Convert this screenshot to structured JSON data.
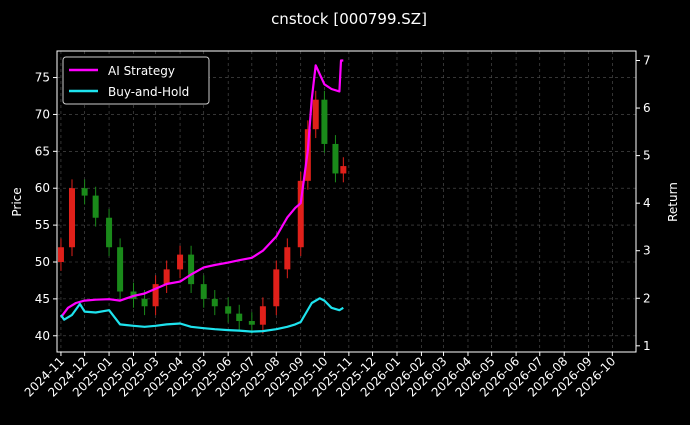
{
  "chart_data": {
    "type": "line",
    "title": "cnstock [000799.SZ]",
    "xlabel": "",
    "ylabel": "Price",
    "y2label": "Return",
    "x_ticks": [
      "2024-11",
      "2024-12",
      "2025-01",
      "2025-02",
      "2025-03",
      "2025-04",
      "2025-05",
      "2025-06",
      "2025-07",
      "2025-08",
      "2025-09",
      "2025-10",
      "2025-11",
      "2025-12",
      "2026-01",
      "2026-02",
      "2026-03",
      "2026-04",
      "2026-05",
      "2026-06",
      "2026-07",
      "2026-08",
      "2026-09",
      "2026-10"
    ],
    "y_ticks": [
      40,
      45,
      50,
      55,
      60,
      65,
      70,
      75
    ],
    "y2_ticks": [
      1,
      2,
      3,
      4,
      5,
      6,
      7
    ],
    "x_range": [
      "2024-10-27",
      "2026-10-31"
    ],
    "y_range": [
      37.8,
      78.6
    ],
    "y2_range": [
      0.87,
      7.2
    ],
    "grid": true,
    "legend_position": "top-left",
    "colors": {
      "background": "#000000",
      "ai_strategy": "#ff00ff",
      "buy_and_hold": "#1ee3ee",
      "candle_up": "#e0201a",
      "candle_down": "#1a8a1a",
      "grid": "#555555",
      "text": "#ffffff"
    },
    "candles": {
      "dates": [
        "2024-11-01",
        "2024-11-15",
        "2024-12-01",
        "2024-12-15",
        "2025-01-01",
        "2025-01-15",
        "2025-02-01",
        "2025-02-15",
        "2025-03-01",
        "2025-03-15",
        "2025-04-01",
        "2025-04-15",
        "2025-05-01",
        "2025-05-15",
        "2025-06-01",
        "2025-06-15",
        "2025-07-01",
        "2025-07-15",
        "2025-08-01",
        "2025-08-15",
        "2025-09-01",
        "2025-09-10",
        "2025-09-20",
        "2025-10-01",
        "2025-10-15",
        "2025-10-25"
      ],
      "close": [
        52,
        60,
        59,
        56,
        52,
        46,
        45,
        44,
        47,
        49,
        51,
        47,
        45,
        44,
        43,
        42,
        41.5,
        44,
        49,
        52,
        61,
        68,
        72,
        66,
        62,
        63
      ]
    },
    "series": [
      {
        "name": "AI Strategy",
        "axis": "right",
        "x": [
          "2024-11-01",
          "2024-11-10",
          "2024-11-20",
          "2024-12-01",
          "2024-12-15",
          "2025-01-01",
          "2025-01-15",
          "2025-02-01",
          "2025-02-15",
          "2025-03-01",
          "2025-03-15",
          "2025-04-01",
          "2025-04-15",
          "2025-05-01",
          "2025-05-15",
          "2025-06-01",
          "2025-06-15",
          "2025-07-01",
          "2025-07-15",
          "2025-08-01",
          "2025-08-15",
          "2025-08-25",
          "2025-09-01",
          "2025-09-10",
          "2025-09-15",
          "2025-09-20",
          "2025-10-01",
          "2025-10-10",
          "2025-10-20",
          "2025-10-22",
          "2025-10-25"
        ],
        "values": [
          1.6,
          1.8,
          1.9,
          1.95,
          1.97,
          1.98,
          1.95,
          2.05,
          2.1,
          2.2,
          2.3,
          2.35,
          2.5,
          2.65,
          2.7,
          2.75,
          2.8,
          2.85,
          3.0,
          3.3,
          3.7,
          3.9,
          4.0,
          5.1,
          6.2,
          6.9,
          6.5,
          6.4,
          6.35,
          7.0,
          7.0
        ]
      },
      {
        "name": "Buy-and-Hold",
        "axis": "right",
        "x": [
          "2024-11-01",
          "2024-11-05",
          "2024-11-15",
          "2024-11-25",
          "2024-12-01",
          "2024-12-15",
          "2025-01-01",
          "2025-01-15",
          "2025-02-01",
          "2025-02-15",
          "2025-03-01",
          "2025-03-15",
          "2025-04-01",
          "2025-04-15",
          "2025-05-01",
          "2025-05-15",
          "2025-06-01",
          "2025-06-15",
          "2025-07-01",
          "2025-07-15",
          "2025-08-01",
          "2025-08-15",
          "2025-08-25",
          "2025-09-01",
          "2025-09-15",
          "2025-09-25",
          "2025-10-01",
          "2025-10-10",
          "2025-10-20",
          "2025-10-25"
        ],
        "values": [
          1.65,
          1.55,
          1.65,
          1.88,
          1.72,
          1.7,
          1.75,
          1.45,
          1.42,
          1.4,
          1.42,
          1.45,
          1.47,
          1.4,
          1.37,
          1.35,
          1.33,
          1.32,
          1.3,
          1.31,
          1.35,
          1.4,
          1.45,
          1.5,
          1.9,
          2.0,
          1.95,
          1.8,
          1.75,
          1.8
        ]
      }
    ]
  }
}
